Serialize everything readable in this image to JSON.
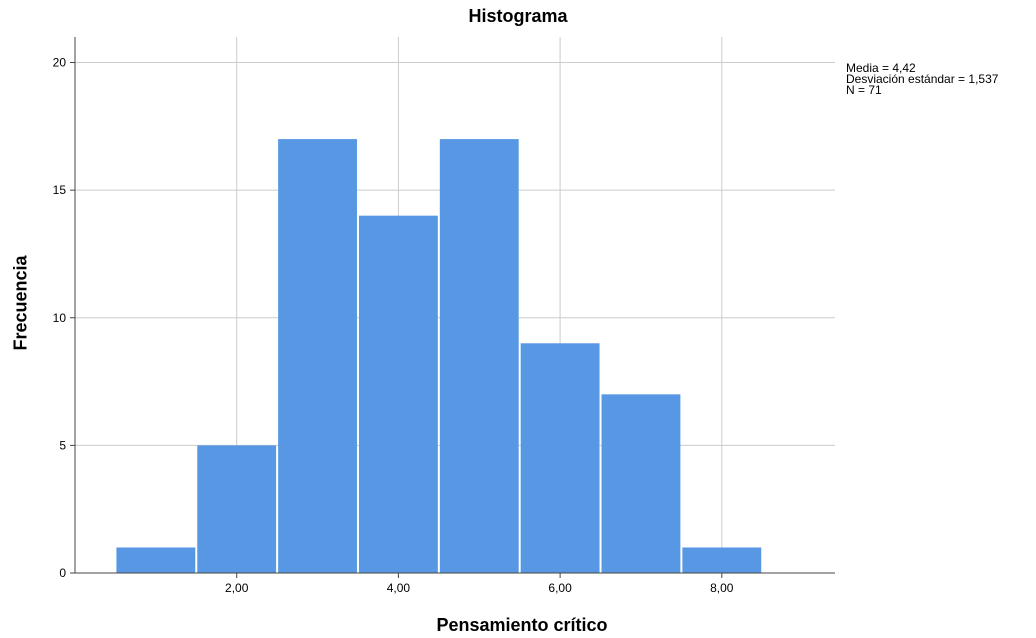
{
  "chart_data": {
    "type": "bar",
    "title": "Histograma",
    "xlabel": "Pensamiento crítico",
    "ylabel": "Frecuencia",
    "bins": [
      {
        "from": 0.5,
        "to": 1.5,
        "value": 1
      },
      {
        "from": 1.5,
        "to": 2.5,
        "value": 5
      },
      {
        "from": 2.5,
        "to": 3.5,
        "value": 17
      },
      {
        "from": 3.5,
        "to": 4.5,
        "value": 14
      },
      {
        "from": 4.5,
        "to": 5.5,
        "value": 17
      },
      {
        "from": 5.5,
        "to": 6.5,
        "value": 9
      },
      {
        "from": 6.5,
        "to": 7.5,
        "value": 7
      },
      {
        "from": 7.5,
        "to": 8.5,
        "value": 1
      }
    ],
    "xlim": [
      0,
      9.4
    ],
    "ylim": [
      0,
      21
    ],
    "x_ticks": [
      2,
      4,
      6,
      8
    ],
    "x_tick_labels": [
      "2,00",
      "4,00",
      "6,00",
      "8,00"
    ],
    "y_ticks": [
      0,
      5,
      10,
      15,
      20
    ],
    "y_tick_labels": [
      "0",
      "5",
      "10",
      "15",
      "20"
    ],
    "grid": true,
    "bar_color": "#5897e3",
    "grid_color": "#cccccc",
    "stats": [
      "Media = 4,42",
      "Desviación estándar = 1,537",
      "N = 71"
    ]
  }
}
